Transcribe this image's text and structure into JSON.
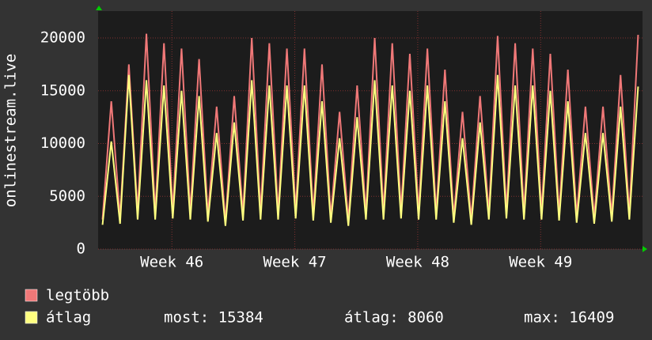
{
  "chart_data": {
    "type": "line",
    "y_label": "onlinestream.live",
    "x": [
      0.25,
      0.75,
      1.25,
      1.75,
      2.25,
      2.75,
      3.25,
      3.75,
      4.25,
      4.75,
      5.25,
      5.75,
      6.25,
      6.75,
      7.25,
      7.75,
      8.25,
      8.75,
      9.25,
      9.75,
      10.25,
      10.75,
      11.25,
      11.75,
      12.25,
      12.75,
      13.25,
      13.75,
      14.25,
      14.75,
      15.25,
      15.75,
      16.25,
      16.75,
      17.25,
      17.75,
      18.25,
      18.75,
      19.25,
      19.75,
      20.25,
      20.75,
      21.25,
      21.75,
      22.25,
      22.75,
      23.25,
      23.75,
      24.25,
      24.75,
      25.25,
      25.75,
      26.25,
      26.75,
      27.25,
      27.75,
      28.25,
      28.75,
      29.25,
      29.75,
      30.25,
      30.75
    ],
    "xlim": [
      0,
      31
    ],
    "xticks": [
      {
        "value": 4.2,
        "label": "Week 46"
      },
      {
        "value": 11.2,
        "label": "Week 47"
      },
      {
        "value": 18.2,
        "label": "Week 48"
      },
      {
        "value": 25.2,
        "label": "Week 49"
      }
    ],
    "ylim": [
      0,
      22550
    ],
    "yticks": [
      0,
      5000,
      10000,
      15000,
      20000
    ],
    "grid": true,
    "series": [
      {
        "name": "legtöbb",
        "color": "#f07878",
        "values": [
          2800,
          14000,
          3000,
          17500,
          3500,
          20400,
          3400,
          19500,
          3600,
          19000,
          3500,
          18000,
          3200,
          13500,
          2600,
          14500,
          3300,
          20000,
          3500,
          19500,
          3400,
          19000,
          3600,
          19000,
          3300,
          17500,
          3000,
          13000,
          2700,
          15500,
          3400,
          20000,
          3500,
          19500,
          3600,
          18500,
          3500,
          19000,
          3400,
          17000,
          3000,
          13000,
          2800,
          14500,
          3400,
          20200,
          3600,
          19500,
          3500,
          19000,
          3500,
          18500,
          3300,
          17000,
          3100,
          13500,
          3000,
          13500,
          3200,
          16500,
          3400,
          20300
        ]
      },
      {
        "name": "átlag",
        "color": "#ffff80",
        "values": [
          2300,
          10200,
          2400,
          16500,
          2800,
          16000,
          2800,
          15500,
          2900,
          15000,
          2800,
          14500,
          2600,
          11000,
          2200,
          12000,
          2700,
          16000,
          2800,
          15500,
          2800,
          15500,
          2900,
          15500,
          2700,
          14000,
          2500,
          10500,
          2200,
          12500,
          2800,
          16000,
          2800,
          15500,
          2900,
          15000,
          2800,
          15500,
          2800,
          14000,
          2500,
          10500,
          2300,
          12000,
          2800,
          16500,
          2900,
          15500,
          2800,
          15500,
          2800,
          15000,
          2700,
          14000,
          2500,
          11000,
          2400,
          11000,
          2600,
          13500,
          2800,
          15400
        ]
      }
    ],
    "stats": [
      "most: 15384",
      "átlag: 8060",
      "max: 16409"
    ]
  }
}
